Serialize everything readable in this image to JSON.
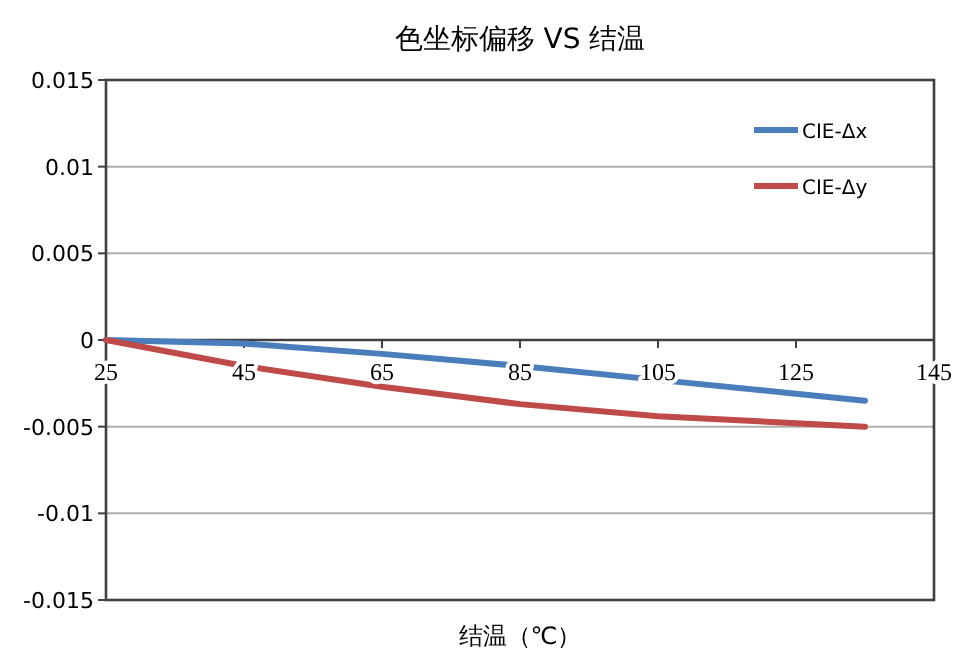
{
  "chart_data": {
    "type": "line",
    "title": "色坐标偏移 VS 结温",
    "xlabel": "结温（℃）",
    "x": [
      25,
      45,
      65,
      85,
      105,
      125,
      135
    ],
    "series": [
      {
        "name": "CIE-Δx",
        "color": "#4a7ebb",
        "values": [
          0,
          -0.0002,
          -0.0008,
          -0.0015,
          -0.0023,
          -0.0031,
          -0.0035
        ]
      },
      {
        "name": "CIE-Δy",
        "color": "#be4b48",
        "values": [
          0,
          -0.0015,
          -0.0027,
          -0.0037,
          -0.0044,
          -0.0048,
          -0.005
        ]
      }
    ],
    "xlim": [
      25,
      145
    ],
    "xticks": [
      25,
      45,
      65,
      85,
      105,
      125,
      145
    ],
    "ylim": [
      -0.015,
      0.015
    ],
    "yticks": [
      -0.015,
      -0.01,
      -0.005,
      0,
      0.005,
      0.01,
      0.015
    ],
    "grid": "y",
    "legend": "top right",
    "marker": "none",
    "line_style": "solid"
  }
}
